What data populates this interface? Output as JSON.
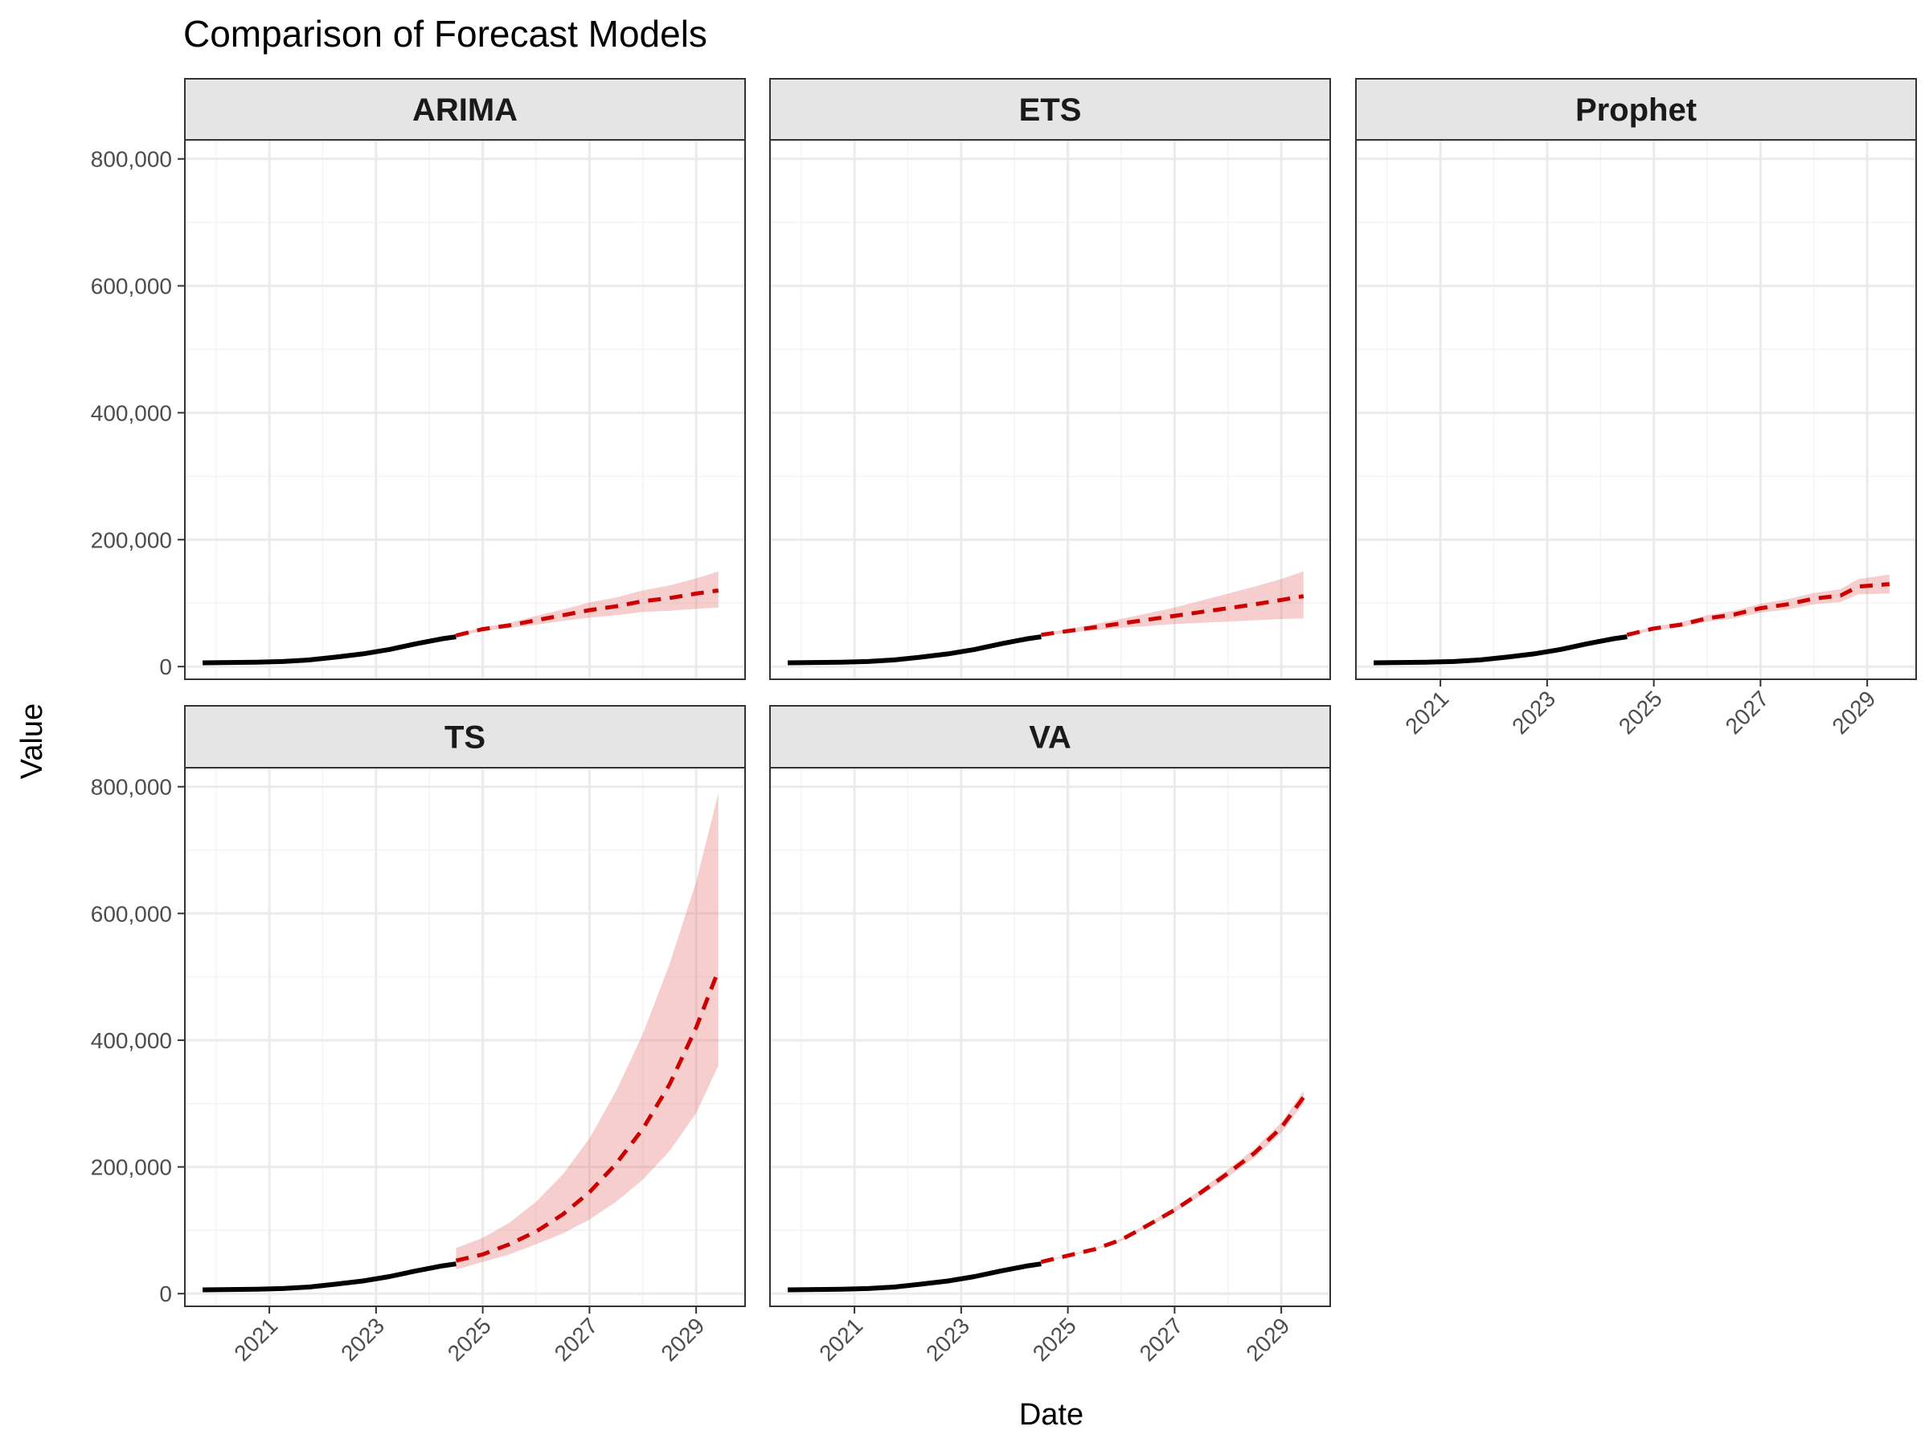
{
  "chart_data": {
    "type": "line",
    "title": "Comparison of Forecast Models",
    "xlabel": "Date",
    "ylabel": "Value",
    "ylim": [
      -20000,
      830000
    ],
    "xlim": [
      "2019-06-01",
      "2029-12-01"
    ],
    "y_ticks": [
      0,
      200000,
      400000,
      600000,
      800000
    ],
    "y_tick_labels": [
      "0",
      "200,000",
      "400,000",
      "600,000",
      "800,000"
    ],
    "x_ticks": [
      "2021-01-01",
      "2023-01-01",
      "2025-01-01",
      "2027-01-01",
      "2029-01-01"
    ],
    "x_tick_labels": [
      "2021",
      "2023",
      "2025",
      "2027",
      "2029"
    ],
    "grid": true,
    "colors": {
      "history": "#000000",
      "forecast": "#cc0000",
      "interval": "#e57373",
      "strip_bg": "#e5e5e5",
      "grid_major": "#ebebeb",
      "grid_minor": "#f4f4f4"
    },
    "history": {
      "x": [
        "2019-10-01",
        "2020-04-01",
        "2020-10-01",
        "2021-04-01",
        "2021-10-01",
        "2022-04-01",
        "2022-10-01",
        "2023-04-01",
        "2023-10-01",
        "2024-04-01",
        "2024-07-01"
      ],
      "y": [
        6000,
        6500,
        7000,
        8000,
        10500,
        15000,
        20000,
        27000,
        36000,
        44000,
        47000
      ]
    },
    "panels": [
      {
        "label": "ARIMA",
        "x": [
          "2024-07-01",
          "2025-01-01",
          "2025-07-01",
          "2026-01-01",
          "2026-07-01",
          "2027-01-01",
          "2027-07-01",
          "2028-01-01",
          "2028-07-01",
          "2029-01-01",
          "2029-06-01"
        ],
        "y": [
          49000,
          59000,
          65000,
          73000,
          81000,
          89000,
          95000,
          103000,
          108000,
          115000,
          120000
        ],
        "lower": [
          47000,
          56000,
          61000,
          66000,
          72000,
          77000,
          81000,
          86000,
          88000,
          91000,
          93000
        ],
        "upper": [
          51000,
          62000,
          69000,
          80000,
          90000,
          101000,
          109000,
          120000,
          128000,
          139000,
          150000
        ]
      },
      {
        "label": "ETS",
        "x": [
          "2024-07-01",
          "2025-01-01",
          "2025-07-01",
          "2026-01-01",
          "2026-07-01",
          "2027-01-01",
          "2027-07-01",
          "2028-01-01",
          "2028-07-01",
          "2029-01-01",
          "2029-06-01"
        ],
        "y": [
          50000,
          56000,
          62000,
          68000,
          74000,
          80000,
          86000,
          92000,
          98000,
          105000,
          111000
        ],
        "lower": [
          48000,
          53000,
          57000,
          61000,
          64000,
          67000,
          69000,
          71000,
          73000,
          75000,
          76000
        ],
        "upper": [
          52000,
          59000,
          67000,
          75000,
          84000,
          93000,
          104000,
          115000,
          126000,
          138000,
          150000
        ]
      },
      {
        "label": "Prophet",
        "x": [
          "2024-07-01",
          "2025-01-01",
          "2025-07-01",
          "2026-01-01",
          "2026-07-01",
          "2027-01-01",
          "2027-07-01",
          "2028-01-01",
          "2028-07-01",
          "2028-11-01",
          "2029-06-01"
        ],
        "y": [
          50000,
          60000,
          66000,
          76000,
          82000,
          92000,
          98000,
          107000,
          112000,
          126000,
          130000
        ],
        "lower": [
          48000,
          57000,
          62000,
          71000,
          76000,
          85000,
          90000,
          98000,
          102000,
          114000,
          115000
        ],
        "upper": [
          52000,
          63000,
          70000,
          81000,
          88000,
          99000,
          106000,
          116000,
          122000,
          138000,
          145000
        ]
      },
      {
        "label": "TS",
        "x": [
          "2024-07-01",
          "2025-01-01",
          "2025-07-01",
          "2026-01-01",
          "2026-07-01",
          "2027-01-01",
          "2027-07-01",
          "2028-01-01",
          "2028-07-01",
          "2029-01-01",
          "2029-06-01"
        ],
        "y": [
          52000,
          62000,
          78000,
          98000,
          125000,
          160000,
          205000,
          260000,
          330000,
          420000,
          510000
        ],
        "lower": [
          38000,
          50000,
          62000,
          78000,
          95000,
          117000,
          145000,
          180000,
          225000,
          285000,
          360000
        ],
        "upper": [
          72000,
          88000,
          112000,
          145000,
          188000,
          245000,
          320000,
          410000,
          520000,
          650000,
          790000
        ]
      },
      {
        "label": "VA",
        "x": [
          "2024-07-01",
          "2025-01-01",
          "2025-07-01",
          "2026-01-01",
          "2026-07-01",
          "2027-01-01",
          "2027-07-01",
          "2028-01-01",
          "2028-07-01",
          "2029-01-01",
          "2029-06-01"
        ],
        "y": [
          50000,
          60000,
          70000,
          85000,
          108000,
          132000,
          160000,
          190000,
          222000,
          262000,
          310000
        ],
        "lower": [
          49000,
          59000,
          69000,
          83000,
          105000,
          128000,
          155000,
          184000,
          215000,
          254000,
          300000
        ],
        "upper": [
          51000,
          61000,
          71000,
          87000,
          111000,
          136000,
          165000,
          196000,
          229000,
          270000,
          320000
        ]
      }
    ]
  }
}
